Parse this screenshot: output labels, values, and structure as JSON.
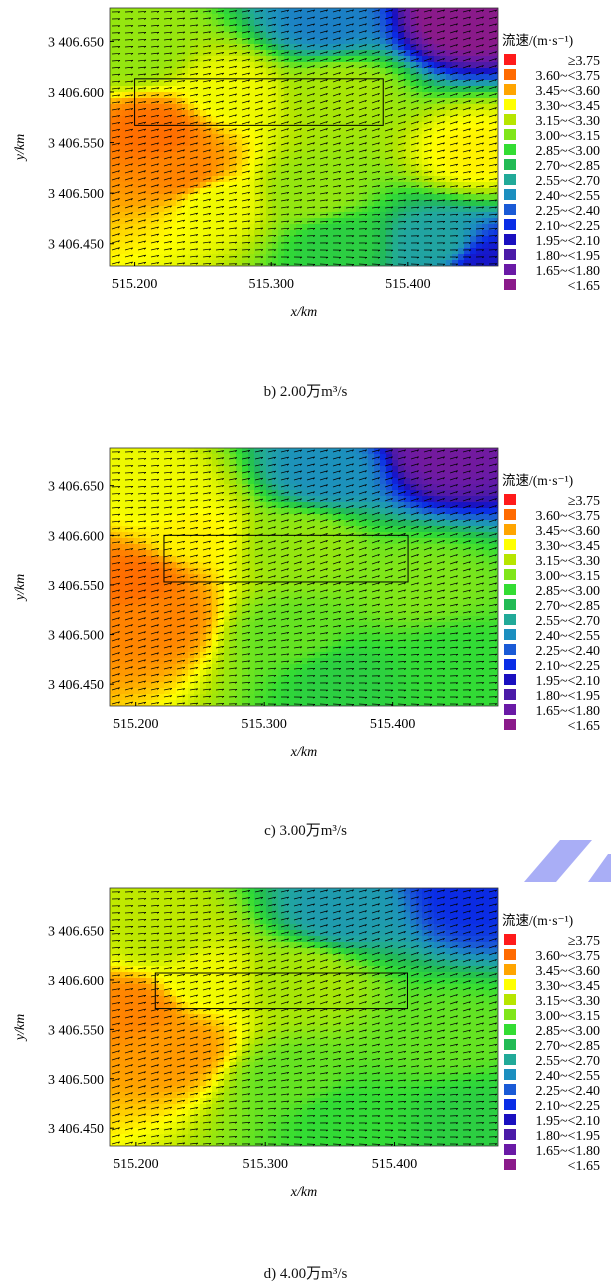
{
  "units": {
    "m3s": "万m³/s"
  },
  "legend": {
    "title": "流速/(m·s⁻¹)",
    "colors": [
      "#ff1a1a",
      "#ff6a00",
      "#ffa500",
      "#ffff00",
      "#b7e600",
      "#80e619",
      "#33dd33",
      "#22bb55",
      "#22aa99",
      "#1c8fbf",
      "#1a5ad6",
      "#0a2de6",
      "#1a10c0",
      "#4b1aa8",
      "#6a1aa6",
      "#8a1a8a"
    ],
    "labels": [
      "≥3.75",
      "3.60~<3.75",
      "3.45~<3.60",
      "3.30~<3.45",
      "3.15~<3.30",
      "3.00~<3.15",
      "2.85~<3.00",
      "2.70~<2.85",
      "2.55~<2.70",
      "2.40~<2.55",
      "2.25~<2.40",
      "2.10~<2.25",
      "1.95~<2.10",
      "1.80~<1.95",
      "1.65~<1.80",
      "<1.65"
    ]
  },
  "chart_data": [
    {
      "type": "heatmap",
      "caption": "b) 2.00万m³/s",
      "xlabel": "x/km",
      "ylabel": "y/km",
      "x_ticks": [
        "515.200",
        "515.300",
        "515.400"
      ],
      "x_tick_values": [
        515.2,
        515.3,
        515.4
      ],
      "y_ticks": [
        "3 406.650",
        "3 406.600",
        "3 406.550",
        "3 406.500",
        "3 406.450"
      ],
      "y_tick_values": [
        3406.65,
        3406.6,
        3406.55,
        3406.5,
        3406.45
      ],
      "xlim": [
        515.182,
        515.466
      ],
      "ylim": [
        3406.428,
        3406.683
      ],
      "rect": {
        "x": [
          515.2,
          515.382
        ],
        "y": [
          3406.567,
          3406.613
        ]
      },
      "field": [
        {
          "x": 515.215,
          "y": 3406.56,
          "v": 3.6
        },
        {
          "x": 515.235,
          "y": 3406.52,
          "v": 3.55
        },
        {
          "x": 515.26,
          "y": 3406.49,
          "v": 3.3
        },
        {
          "x": 515.27,
          "y": 3406.6,
          "v": 3.3
        },
        {
          "x": 515.35,
          "y": 3406.6,
          "v": 3.15
        },
        {
          "x": 515.33,
          "y": 3406.5,
          "v": 3.1
        },
        {
          "x": 515.45,
          "y": 3406.54,
          "v": 3.35
        },
        {
          "x": 515.35,
          "y": 3406.45,
          "v": 2.85
        },
        {
          "x": 515.42,
          "y": 3406.45,
          "v": 2.6
        },
        {
          "x": 515.46,
          "y": 3406.43,
          "v": 2.1
        },
        {
          "x": 515.34,
          "y": 3406.67,
          "v": 2.45
        },
        {
          "x": 515.44,
          "y": 3406.675,
          "v": 1.6
        },
        {
          "x": 515.2,
          "y": 3406.64,
          "v": 3.1
        }
      ]
    },
    {
      "type": "heatmap",
      "caption": "c) 3.00万m³/s",
      "xlabel": "x/km",
      "ylabel": "y/km",
      "x_ticks": [
        "515.200",
        "515.300",
        "515.400"
      ],
      "x_tick_values": [
        515.2,
        515.3,
        515.4
      ],
      "y_ticks": [
        "3 406.650",
        "3 406.600",
        "3 406.550",
        "3 406.500",
        "3 406.450"
      ],
      "y_tick_values": [
        3406.65,
        3406.6,
        3406.55,
        3406.5,
        3406.45
      ],
      "xlim": [
        515.18,
        515.482
      ],
      "ylim": [
        3406.428,
        3406.688
      ],
      "rect": {
        "x": [
          515.222,
          515.412
        ],
        "y": [
          3406.553,
          3406.6
        ]
      },
      "field": [
        {
          "x": 515.2,
          "y": 3406.555,
          "v": 3.6
        },
        {
          "x": 515.215,
          "y": 3406.515,
          "v": 3.55
        },
        {
          "x": 515.24,
          "y": 3406.6,
          "v": 3.35
        },
        {
          "x": 515.22,
          "y": 3406.64,
          "v": 3.3
        },
        {
          "x": 515.33,
          "y": 3406.59,
          "v": 3.1
        },
        {
          "x": 515.32,
          "y": 3406.5,
          "v": 3.0
        },
        {
          "x": 515.42,
          "y": 3406.55,
          "v": 3.05
        },
        {
          "x": 515.36,
          "y": 3406.455,
          "v": 2.85
        },
        {
          "x": 515.45,
          "y": 3406.47,
          "v": 2.9
        },
        {
          "x": 515.35,
          "y": 3406.665,
          "v": 2.5
        },
        {
          "x": 515.44,
          "y": 3406.685,
          "v": 1.75
        }
      ]
    },
    {
      "type": "heatmap",
      "caption": "d) 4.00万m³/s",
      "xlabel": "x/km",
      "ylabel": "y/km",
      "x_ticks": [
        "515.200",
        "515.300",
        "515.400"
      ],
      "x_tick_values": [
        515.2,
        515.3,
        515.4
      ],
      "y_ticks": [
        "3 406.650",
        "3 406.600",
        "3 406.550",
        "3 406.500",
        "3 406.450"
      ],
      "y_tick_values": [
        3406.65,
        3406.6,
        3406.55,
        3406.5,
        3406.45
      ],
      "xlim": [
        515.18,
        515.48
      ],
      "ylim": [
        3406.432,
        3406.693
      ],
      "rect": {
        "x": [
          515.215,
          515.41
        ],
        "y": [
          3406.571,
          3406.607
        ]
      },
      "field": [
        {
          "x": 515.2,
          "y": 3406.57,
          "v": 3.55
        },
        {
          "x": 515.23,
          "y": 3406.53,
          "v": 3.5
        },
        {
          "x": 515.25,
          "y": 3406.6,
          "v": 3.3
        },
        {
          "x": 515.22,
          "y": 3406.645,
          "v": 3.2
        },
        {
          "x": 515.33,
          "y": 3406.6,
          "v": 3.15
        },
        {
          "x": 515.32,
          "y": 3406.5,
          "v": 3.0
        },
        {
          "x": 515.44,
          "y": 3406.54,
          "v": 3.0
        },
        {
          "x": 515.36,
          "y": 3406.46,
          "v": 2.9
        },
        {
          "x": 515.46,
          "y": 3406.46,
          "v": 2.85
        },
        {
          "x": 515.36,
          "y": 3406.67,
          "v": 2.55
        },
        {
          "x": 515.46,
          "y": 3406.69,
          "v": 2.2
        }
      ]
    }
  ]
}
